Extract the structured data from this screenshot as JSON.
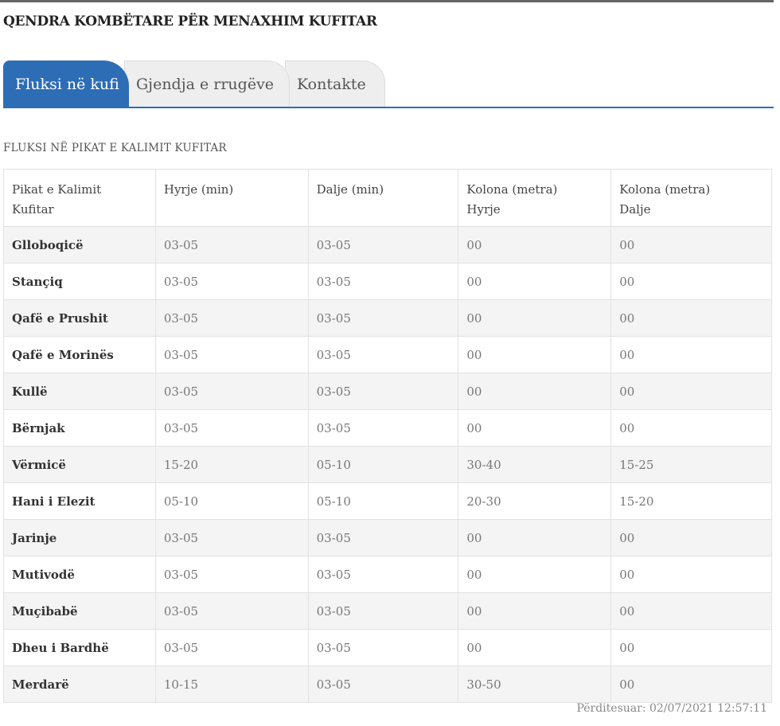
{
  "header": {
    "title": "QENDRA KOMBËTARE PËR MENAXHIM KUFITAR"
  },
  "tabs": [
    {
      "label": "Fluksi në kufi",
      "active": true
    },
    {
      "label": "Gjendja e rrugëve",
      "active": false
    },
    {
      "label": "Kontakte",
      "active": false
    }
  ],
  "section": {
    "title": "FLUKSI NË PIKAT E KALIMIT KUFITAR"
  },
  "table": {
    "headers": [
      [
        "Pikat e Kalimit",
        "Kufitar"
      ],
      [
        "Hyrje (min)",
        ""
      ],
      [
        "Dalje (min)",
        ""
      ],
      [
        "Kolona (metra)",
        "Hyrje"
      ],
      [
        "Kolona (metra)",
        "Dalje"
      ]
    ],
    "rows": [
      [
        "Glloboqicë",
        "03-05",
        "03-05",
        "00",
        "00"
      ],
      [
        "Stançiq",
        "03-05",
        "03-05",
        "00",
        "00"
      ],
      [
        "Qafë e Prushit",
        "03-05",
        "03-05",
        "00",
        "00"
      ],
      [
        "Qafë e Morinës",
        "03-05",
        "03-05",
        "00",
        "00"
      ],
      [
        "Kullë",
        "03-05",
        "03-05",
        "00",
        "00"
      ],
      [
        "Bërnjak",
        "03-05",
        "03-05",
        "00",
        "00"
      ],
      [
        "Vërmicë",
        "15-20",
        "05-10",
        "30-40",
        "15-25"
      ],
      [
        "Hani i Elezit",
        "05-10",
        "05-10",
        "20-30",
        "15-20"
      ],
      [
        "Jarinje",
        "03-05",
        "03-05",
        "00",
        "00"
      ],
      [
        "Mutivodë",
        "03-05",
        "03-05",
        "00",
        "00"
      ],
      [
        "Muçibabë",
        "03-05",
        "03-05",
        "00",
        "00"
      ],
      [
        "Dheu i Bardhë",
        "03-05",
        "03-05",
        "00",
        "00"
      ],
      [
        "Merdarë",
        "10-15",
        "03-05",
        "30-50",
        "00"
      ]
    ]
  },
  "footer": {
    "updated": "Përditesuar: 02/07/2021 12:57:11"
  },
  "colors": {
    "accent": "#2d6db5",
    "tab_inactive": "#eeeeee",
    "row_alt": "#f4f4f4"
  }
}
